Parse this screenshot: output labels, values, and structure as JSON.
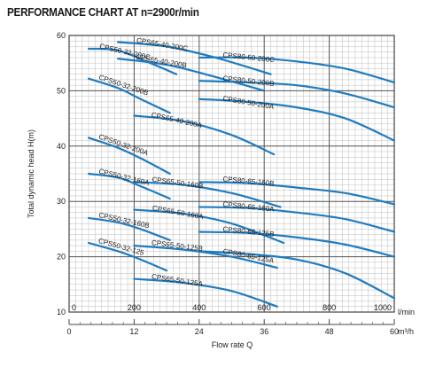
{
  "chart_data": {
    "type": "line",
    "title": "PERFORMANCE CHART AT n=2900r/min",
    "ylabel": "Total dynamic head H(m)",
    "xlabel": "Flow rate Q",
    "ylim": [
      10,
      60
    ],
    "xlim_lmin": [
      0,
      1000
    ],
    "xlim_m3h": [
      0,
      60
    ],
    "y_ticks": [
      "10",
      "20",
      "30",
      "40",
      "50",
      "60"
    ],
    "x_ticks_lmin": [
      "0",
      "200",
      "400",
      "600",
      "800",
      "1000"
    ],
    "x_ticks_m3h": [
      "0",
      "12",
      "24",
      "36",
      "48",
      "60"
    ],
    "x_unit_lmin": "l/min",
    "x_unit_m3h": "m³/h",
    "grid": true,
    "line_color": "#1f7bc0",
    "series": [
      {
        "name": "CPS50-32-200C",
        "x": [
          60,
          150,
          250,
          330
        ],
        "y": [
          57.6,
          57.3,
          55.0,
          53.0
        ]
      },
      {
        "name": "CPS50-32-200B",
        "x": [
          60,
          150,
          220,
          310
        ],
        "y": [
          52.2,
          50.5,
          48.5,
          46.0
        ]
      },
      {
        "name": "CPS50-32-200A",
        "x": [
          60,
          150,
          220,
          310
        ],
        "y": [
          41.5,
          39.7,
          37.8,
          35.0
        ]
      },
      {
        "name": "CPS50-32-160A",
        "x": [
          60,
          150,
          230,
          310
        ],
        "y": [
          35.0,
          34.3,
          32.5,
          30.5
        ]
      },
      {
        "name": "CPS50-32-160B",
        "x": [
          60,
          150,
          220,
          310
        ],
        "y": [
          27.0,
          26.2,
          25.0,
          23.0
        ]
      },
      {
        "name": "CPS50-32-125",
        "x": [
          60,
          150,
          220,
          300
        ],
        "y": [
          22.5,
          21.0,
          19.5,
          17.5
        ]
      },
      {
        "name": "CPS65-40-200C",
        "x": [
          150,
          300,
          450,
          620
        ],
        "y": [
          58.8,
          58.0,
          56.0,
          53.0
        ]
      },
      {
        "name": "CPS65-40-200B",
        "x": [
          150,
          300,
          450,
          600
        ],
        "y": [
          55.8,
          54.7,
          52.5,
          50.0
        ]
      },
      {
        "name": "CPS65-40-200A",
        "x": [
          200,
          350,
          500,
          630
        ],
        "y": [
          45.5,
          44.5,
          42.0,
          38.5
        ]
      },
      {
        "name": "CPS65-50-160B",
        "x": [
          200,
          350,
          500,
          650
        ],
        "y": [
          33.5,
          33.0,
          31.5,
          29.0
        ]
      },
      {
        "name": "CPS65-50-160A",
        "x": [
          200,
          350,
          500,
          660
        ],
        "y": [
          28.5,
          27.8,
          26.0,
          22.5
        ]
      },
      {
        "name": "CPS65-50-125B",
        "x": [
          200,
          350,
          500,
          640
        ],
        "y": [
          22.0,
          21.3,
          20.0,
          18.0
        ]
      },
      {
        "name": "CPS65-50-125A",
        "x": [
          200,
          350,
          500,
          640
        ],
        "y": [
          16.0,
          15.3,
          13.8,
          11.0
        ]
      },
      {
        "name": "CPS80-50-200C",
        "x": [
          400,
          550,
          700,
          850,
          1000
        ],
        "y": [
          56.0,
          56.0,
          55.3,
          54.0,
          51.5
        ]
      },
      {
        "name": "CPS80-50-200B",
        "x": [
          400,
          550,
          700,
          850,
          1000
        ],
        "y": [
          51.8,
          51.5,
          51.0,
          49.5,
          47.0
        ]
      },
      {
        "name": "CPS80-50-200A",
        "x": [
          400,
          550,
          700,
          850,
          1000
        ],
        "y": [
          48.5,
          48.0,
          47.0,
          45.0,
          41.0
        ]
      },
      {
        "name": "CPS80-65-160B",
        "x": [
          400,
          550,
          700,
          850,
          1000
        ],
        "y": [
          33.5,
          33.3,
          32.5,
          31.5,
          29.5
        ]
      },
      {
        "name": "CPS80-65-160A",
        "x": [
          400,
          550,
          700,
          850,
          1000
        ],
        "y": [
          29.0,
          28.8,
          28.0,
          26.8,
          24.5
        ]
      },
      {
        "name": "CPS80-65-125B",
        "x": [
          400,
          550,
          700,
          850,
          1000
        ],
        "y": [
          24.5,
          24.3,
          23.5,
          22.2,
          20.0
        ]
      },
      {
        "name": "CPS80-65-125A",
        "x": [
          400,
          550,
          700,
          850,
          1000
        ],
        "y": [
          21.0,
          20.5,
          19.5,
          17.0,
          12.5
        ]
      }
    ]
  }
}
